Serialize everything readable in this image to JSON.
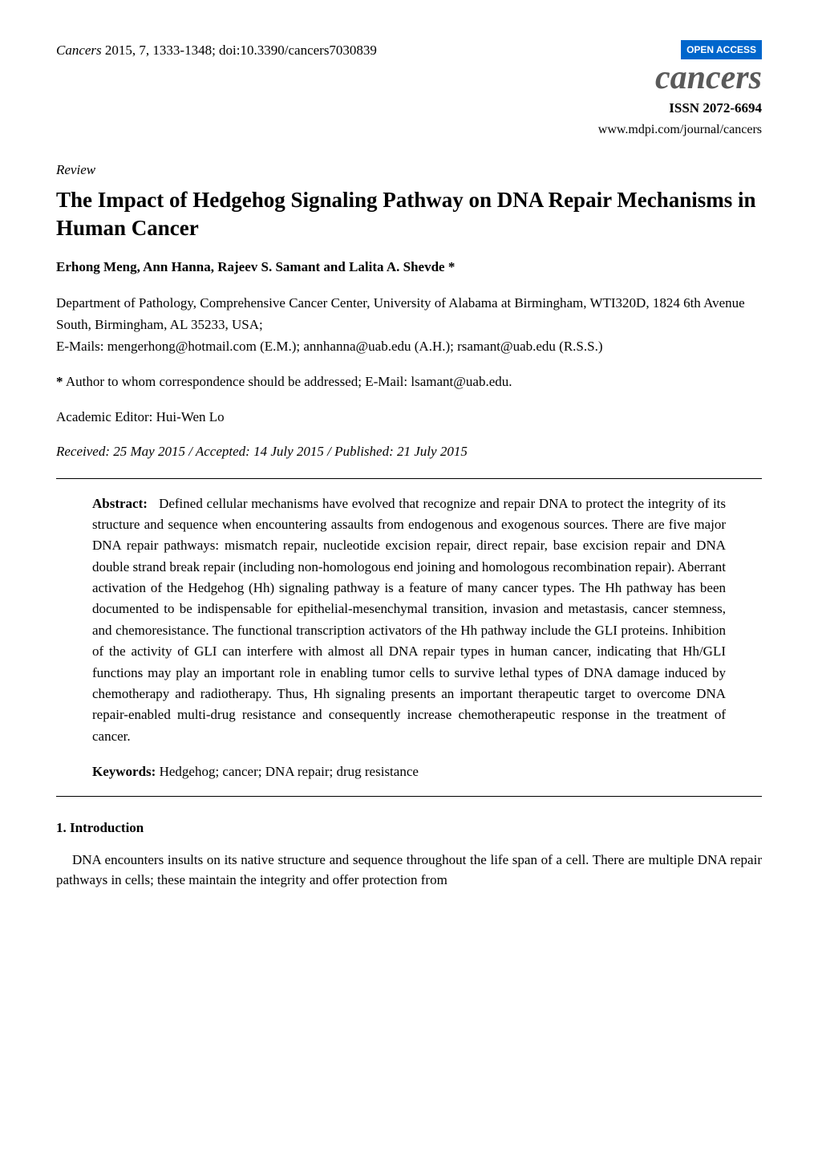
{
  "header": {
    "citation_prefix": "Cancers",
    "citation": " 2015, 7, 1333-1348; doi:10.3390/cancers7030839",
    "open_access": "OPEN ACCESS",
    "journal_name": "cancers",
    "issn": "ISSN 2072-6694",
    "url": "www.mdpi.com/journal/cancers"
  },
  "article_type": "Review",
  "title": "The Impact of Hedgehog Signaling Pathway on DNA Repair Mechanisms in Human Cancer",
  "authors": "Erhong Meng, Ann Hanna, Rajeev S. Samant and Lalita A. Shevde *",
  "affiliation": "Department of Pathology, Comprehensive Cancer Center, University of Alabama at Birmingham, WTI320D, 1824 6th Avenue South, Birmingham, AL 35233, USA;",
  "emails": "E-Mails: mengerhong@hotmail.com (E.M.); annhanna@uab.edu (A.H.); rsamant@uab.edu (R.S.S.)",
  "correspondence": "* Author to whom correspondence should be addressed; E-Mail: lsamant@uab.edu.",
  "editor": "Academic Editor: Hui-Wen Lo",
  "dates": "Received: 25 May 2015 / Accepted: 14 July 2015 / Published: 21 July 2015",
  "abstract": {
    "label": "Abstract:",
    "text": "Defined cellular mechanisms have evolved that recognize and repair DNA to protect the integrity of its structure and sequence when encountering assaults from endogenous and exogenous sources. There are five major DNA repair pathways: mismatch repair, nucleotide excision repair, direct repair, base excision repair and DNA double strand break repair (including non-homologous end joining and homologous recombination repair). Aberrant activation of the Hedgehog (Hh) signaling pathway is a feature of many cancer types. The Hh pathway has been documented to be indispensable for epithelial-mesenchymal transition, invasion and metastasis, cancer stemness, and chemoresistance. The functional transcription activators of the Hh pathway include the GLI proteins. Inhibition of the activity of GLI can interfere with almost all DNA repair types in human cancer, indicating that Hh/GLI functions may play an important role in enabling tumor cells to survive lethal types of DNA damage induced by chemotherapy and radiotherapy. Thus, Hh signaling presents an important therapeutic target to overcome DNA repair-enabled multi-drug resistance and consequently increase chemotherapeutic response in the treatment of cancer."
  },
  "keywords": {
    "label": "Keywords:",
    "text": " Hedgehog; cancer; DNA repair; drug resistance"
  },
  "section1": {
    "heading": "1. Introduction",
    "text": "DNA encounters insults on its native structure and sequence throughout the life span of a cell. There are multiple DNA repair pathways in cells; these maintain the integrity and offer protection from"
  },
  "colors": {
    "open_access_bg": "#0066cc",
    "open_access_fg": "#ffffff",
    "journal_name_color": "#5a5a5a",
    "text_color": "#000000",
    "background": "#ffffff",
    "divider": "#000000"
  },
  "typography": {
    "body_font": "Times New Roman",
    "title_size_pt": 20,
    "body_size_pt": 12,
    "journal_name_size_pt": 32
  }
}
